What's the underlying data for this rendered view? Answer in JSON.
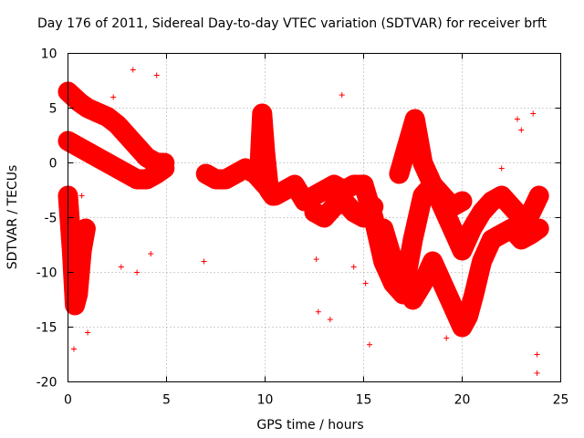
{
  "chart_data": {
    "type": "scatter",
    "title": "Day 176 of 2011, Sidereal Day-to-day VTEC variation (SDTVAR) for receiver brft",
    "xlabel": "GPS time / hours",
    "ylabel": "SDTVAR / TECUs",
    "xlim": [
      0,
      25
    ],
    "ylim": [
      -20,
      10
    ],
    "x_ticks": [
      "0",
      "5",
      "10",
      "15",
      "20",
      "25"
    ],
    "y_ticks": [
      "10",
      "5",
      "0",
      "-5",
      "-10",
      "-15",
      "-20"
    ],
    "x_tick_values": [
      0,
      5,
      10,
      15,
      20,
      25
    ],
    "y_tick_values": [
      10,
      5,
      0,
      -5,
      -10,
      -15,
      -20
    ],
    "grid": true,
    "marker": "+",
    "color": "#ff0000",
    "dense_bands": [
      {
        "name": "band-early-upper",
        "x": [
          0.0,
          0.3,
          0.6,
          1.0,
          1.5,
          2.0,
          2.5,
          3.0,
          3.5,
          4.0,
          4.5,
          4.9
        ],
        "y": [
          6.5,
          6.0,
          5.5,
          5.0,
          4.6,
          4.2,
          3.5,
          2.5,
          1.5,
          0.5,
          0.0,
          0.0
        ]
      },
      {
        "name": "band-early-mid",
        "x": [
          0.0,
          0.5,
          1.0,
          1.5,
          2.0,
          2.5,
          3.0,
          3.5,
          4.0,
          4.5,
          4.9
        ],
        "y": [
          2.0,
          1.5,
          1.0,
          0.5,
          0.0,
          -0.5,
          -1.0,
          -1.5,
          -1.5,
          -1.0,
          -0.5
        ]
      },
      {
        "name": "band-early-dip",
        "x": [
          0.0,
          0.2,
          0.35,
          0.5,
          0.7,
          0.9
        ],
        "y": [
          -3.0,
          -8.0,
          -13.0,
          -12.0,
          -8.0,
          -6.0
        ]
      },
      {
        "name": "band-midday",
        "x": [
          7.0,
          7.5,
          8.0,
          8.5,
          9.0,
          9.5,
          10.0,
          10.5,
          11.0,
          11.5,
          12.0,
          12.5,
          13.0,
          13.5,
          14.0,
          14.5,
          15.0
        ],
        "y": [
          -1.0,
          -1.5,
          -1.5,
          -1.0,
          -0.5,
          -1.0,
          -2.0,
          -3.0,
          -2.5,
          -2.0,
          -3.5,
          -3.0,
          -2.5,
          -2.0,
          -2.5,
          -2.0,
          -2.0
        ]
      },
      {
        "name": "band-peak",
        "x": [
          9.7,
          9.85,
          10.0,
          10.2,
          10.4
        ],
        "y": [
          -1.0,
          4.5,
          1.0,
          -2.5,
          -3.0
        ]
      },
      {
        "name": "band-midday-lower",
        "x": [
          12.5,
          13.0,
          13.5,
          14.0,
          14.5,
          15.0,
          15.5
        ],
        "y": [
          -4.5,
          -5.0,
          -4.0,
          -3.5,
          -4.5,
          -5.0,
          -4.0
        ]
      },
      {
        "name": "band-afternoon",
        "x": [
          15.0,
          15.5,
          16.0,
          16.5,
          17.0,
          17.5,
          18.0,
          18.5,
          19.0,
          19.5,
          20.0,
          20.5,
          21.0,
          21.5,
          22.0,
          22.5,
          23.0,
          23.5,
          23.9
        ],
        "y": [
          -2.0,
          -5.0,
          -9.0,
          -11.0,
          -12.0,
          -7.0,
          -3.0,
          -2.0,
          -4.0,
          -6.0,
          -8.0,
          -6.0,
          -4.5,
          -3.5,
          -3.0,
          -4.0,
          -5.0,
          -4.5,
          -3.0
        ]
      },
      {
        "name": "band-afternoon-lower",
        "x": [
          16.0,
          16.5,
          17.0,
          17.5,
          18.0,
          18.5,
          19.0,
          19.5,
          20.0,
          20.3,
          20.6,
          21.0,
          21.5,
          22.0,
          22.5,
          23.0,
          23.5,
          23.9
        ],
        "y": [
          -6.0,
          -9.0,
          -11.0,
          -12.5,
          -11.0,
          -9.0,
          -11.0,
          -13.0,
          -15.0,
          -14.0,
          -12.0,
          -9.0,
          -7.0,
          -6.5,
          -6.0,
          -7.0,
          -6.5,
          -6.0
        ]
      },
      {
        "name": "band-afternoon-upper",
        "x": [
          16.8,
          17.2,
          17.6,
          18.0,
          18.5,
          19.0,
          19.5,
          20.0
        ],
        "y": [
          -1.0,
          1.5,
          4.0,
          0.0,
          -2.0,
          -3.0,
          -4.0,
          -3.5
        ]
      }
    ],
    "outlier_points": {
      "x": [
        0.3,
        1.0,
        3.3,
        3.5,
        2.7,
        4.2,
        4.5,
        0.7,
        2.3,
        6.9,
        13.9,
        12.6,
        12.7,
        13.3,
        15.3,
        15.1,
        19.2,
        22.0,
        23.0,
        23.8,
        23.8,
        23.6,
        22.8,
        14.5
      ],
      "y": [
        -17.0,
        -15.5,
        8.5,
        -10.0,
        -9.5,
        -8.3,
        8.0,
        -3.0,
        6.0,
        -9.0,
        6.2,
        -8.8,
        -13.6,
        -14.3,
        -16.6,
        -11.0,
        -16.0,
        -0.5,
        3.0,
        -17.5,
        -19.2,
        4.5,
        4.0,
        -9.5
      ]
    }
  }
}
